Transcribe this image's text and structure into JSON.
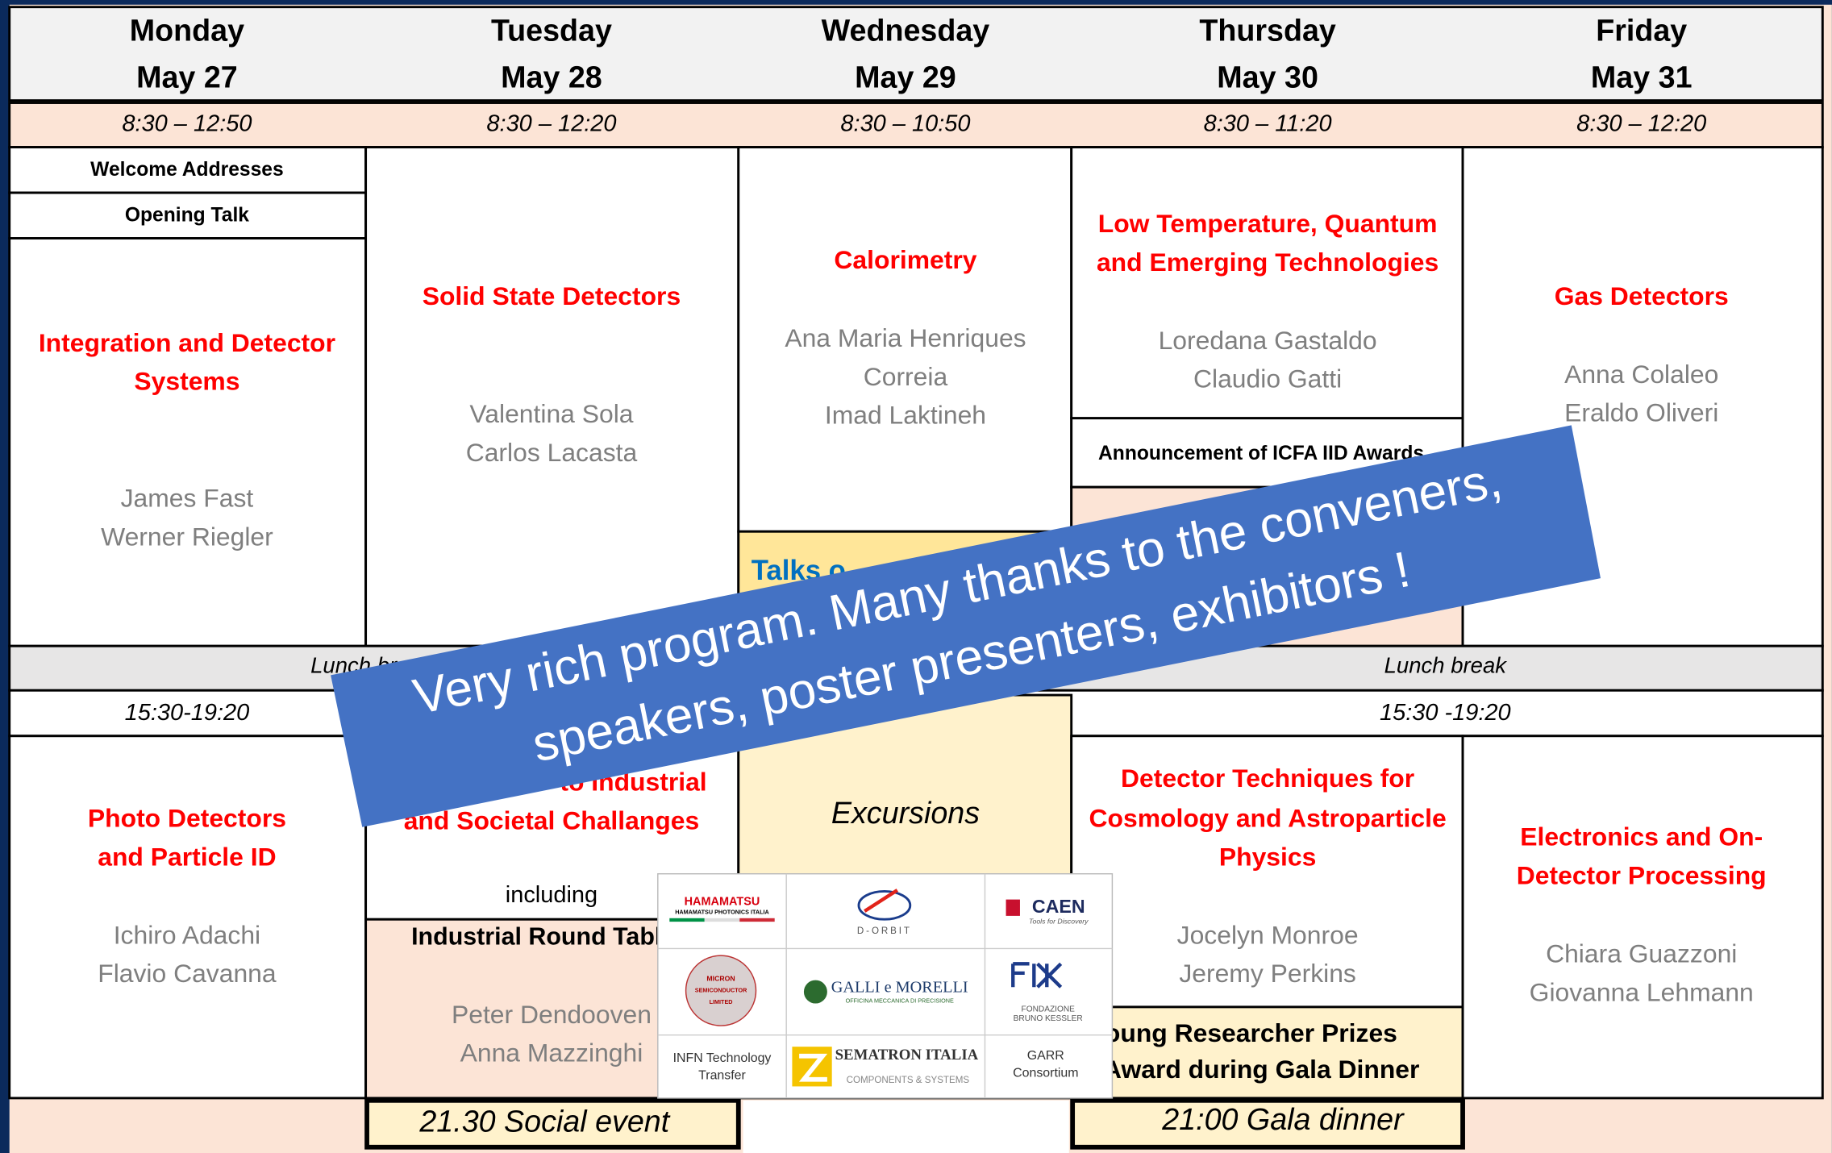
{
  "days": [
    {
      "name": "Monday",
      "date": "May 27",
      "morning_time": "8:30 – 12:50"
    },
    {
      "name": "Tuesday",
      "date": "May 28",
      "morning_time": "8:30 – 12:20"
    },
    {
      "name": "Wednesday",
      "date": "May 29",
      "morning_time": "8:30 – 10:50"
    },
    {
      "name": "Thursday",
      "date": "May 30",
      "morning_time": "8:30 – 11:20"
    },
    {
      "name": "Friday",
      "date": "May 31",
      "morning_time": "8:30 – 12:20"
    }
  ],
  "monday": {
    "welcome": "Welcome Addresses",
    "opening": "Opening Talk",
    "am_title": [
      "Integration and Detector",
      "Systems"
    ],
    "am_conveners": [
      "James Fast",
      "Werner Riegler"
    ],
    "pm_title": [
      "Photo Detectors",
      "and Particle ID"
    ],
    "pm_conveners": [
      "Ichiro Adachi",
      "Flavio Cavanna"
    ]
  },
  "tuesday": {
    "am_title": "Solid State Detectors",
    "am_conveners": [
      "Valentina Sola",
      "Carlos Lacasta"
    ],
    "pm_title": [
      "to Industrial",
      "and Societal Challanges"
    ],
    "including": "including",
    "round_table": "Industrial Round Table",
    "pm_conveners": [
      "Peter Dendooven",
      "Anna Mazzinghi"
    ],
    "evening": "21.30 Social event"
  },
  "wednesday": {
    "am_title": "Calorimetry",
    "am_conveners": [
      "Ana Maria Henriques",
      "Correia",
      "Imad Laktineh"
    ],
    "talks": "Talks o",
    "pm": "Excursions"
  },
  "thursday": {
    "am_title": [
      "Low Temperature, Quantum",
      "and Emerging Technologies"
    ],
    "am_conveners": [
      "Loredana Gastaldo",
      "Claudio Gatti"
    ],
    "announcement": "Announcement of ICFA IID Awards",
    "pm_title": [
      "Detector Techniques for",
      "Cosmology and Astroparticle",
      "Physics"
    ],
    "pm_conveners": [
      "Jocelyn Monroe",
      "Jeremy Perkins"
    ],
    "prizes": [
      "Young Researcher Prizes",
      "Award during Gala Dinner"
    ],
    "evening": "21:00 Gala dinner"
  },
  "friday": {
    "am_title": "Gas Detectors",
    "am_conveners": [
      "Anna Colaleo",
      "Eraldo Oliveri"
    ],
    "pm_title": [
      "Electronics and On-",
      "Detector Processing"
    ],
    "pm_conveners": [
      "Chiara Guazzoni",
      "Giovanna Lehmann"
    ]
  },
  "lunch": [
    "Lunch break",
    "Lunch break"
  ],
  "afternoon_time": [
    "15:30-19:20",
    "15:30 -19:20"
  ],
  "banner": [
    "Very rich program. Many thanks to the conveners,",
    "speakers, poster presenters, exhibitors !"
  ],
  "logos": {
    "hamamatsu": "HAMAMATSU",
    "hamamatsu_sub": "HAMAMATSU PHOTONICS ITALIA",
    "dorbit": "D-ORBIT",
    "caen": "CAEN",
    "caen_sub": "Tools for Discovery",
    "micron": [
      "MICRON",
      "SEMICONDUCTOR",
      "LIMITED"
    ],
    "galli": "GALLI e MORELLI",
    "galli_sub": "OFFICINA MECCANICA DI PRECISIONE",
    "fbk": [
      "FONDAZIONE",
      "BRUNO KESSLER"
    ],
    "infn": [
      "INFN Technology",
      "Transfer"
    ],
    "sematron": "SEMATRON ITALIA",
    "sematron_sub": "COMPONENTS & SYSTEMS",
    "garr": [
      "GARR",
      "Consortium"
    ]
  }
}
